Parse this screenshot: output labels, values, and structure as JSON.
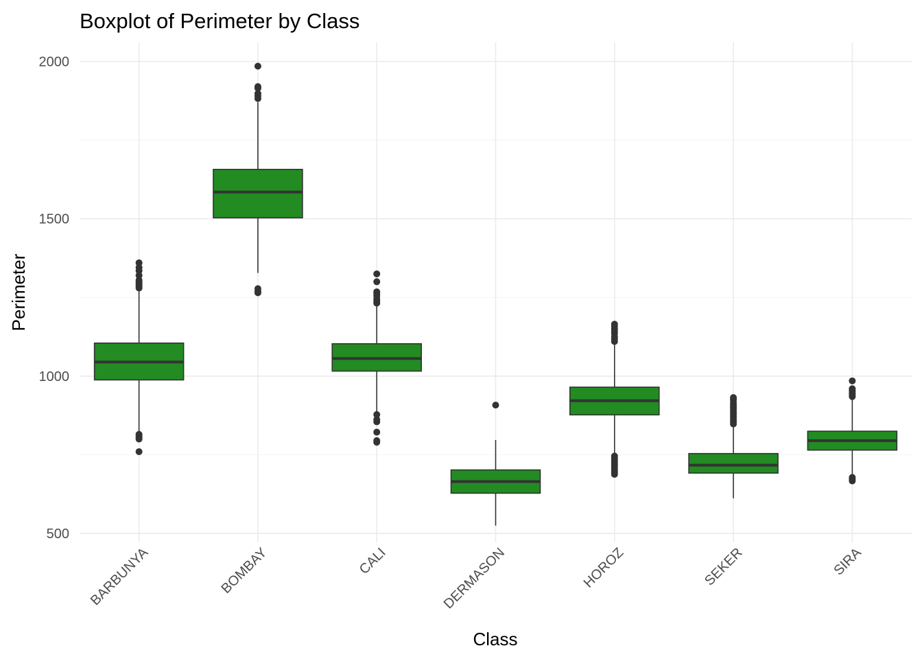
{
  "chart_data": {
    "type": "boxplot",
    "title": "Boxplot of Perimeter by Class",
    "xlabel": "Class",
    "ylabel": "Perimeter",
    "ylim": [
      472,
      2060
    ],
    "y_ticks": [
      500,
      1000,
      1500,
      2000
    ],
    "y_tick_labels": [
      "500",
      "1000",
      "1500",
      "2000"
    ],
    "grid": true,
    "fill_color": "#228b22",
    "line_color": "#333333",
    "categories": [
      "BARBUNYA",
      "BOMBAY",
      "CALI",
      "DERMASON",
      "HOROZ",
      "SEKER",
      "SIRA"
    ],
    "boxes": [
      {
        "category": "BARBUNYA",
        "whisker_low": 822,
        "q1": 988,
        "median": 1045,
        "q3": 1105,
        "whisker_high": 1270,
        "outliers": [
          760,
          800,
          805,
          810,
          815,
          1280,
          1285,
          1290,
          1295,
          1300,
          1305,
          1320,
          1335,
          1345,
          1360
        ]
      },
      {
        "category": "BOMBAY",
        "whisker_low": 1328,
        "q1": 1503,
        "median": 1585,
        "q3": 1657,
        "whisker_high": 1870,
        "outliers": [
          1265,
          1270,
          1278,
          1882,
          1890,
          1898,
          1915,
          1920,
          1985
        ]
      },
      {
        "category": "CALI",
        "whisker_low": 885,
        "q1": 1016,
        "median": 1056,
        "q3": 1103,
        "whisker_high": 1225,
        "outliers": [
          790,
          795,
          822,
          855,
          862,
          878,
          1232,
          1238,
          1245,
          1255,
          1262,
          1268,
          1300,
          1325
        ]
      },
      {
        "category": "DERMASON",
        "whisker_low": 525,
        "q1": 628,
        "median": 665,
        "q3": 702,
        "whisker_high": 797,
        "outliers": [
          908
        ]
      },
      {
        "category": "HOROZ",
        "whisker_low": 755,
        "q1": 877,
        "median": 922,
        "q3": 965,
        "whisker_high": 1100,
        "outliers": [
          688,
          693,
          698,
          703,
          710,
          718,
          725,
          732,
          740,
          746,
          1110,
          1118,
          1125,
          1135,
          1142,
          1150,
          1158,
          1165
        ]
      },
      {
        "category": "SEKER",
        "whisker_low": 612,
        "q1": 692,
        "median": 717,
        "q3": 754,
        "whisker_high": 840,
        "outliers": [
          848,
          855,
          862,
          870,
          878,
          885,
          893,
          900,
          908,
          915,
          925,
          932
        ]
      },
      {
        "category": "SIRA",
        "whisker_low": 685,
        "q1": 765,
        "median": 795,
        "q3": 825,
        "whisker_high": 930,
        "outliers": [
          667,
          672,
          678,
          935,
          940,
          945,
          950,
          955,
          960,
          985
        ]
      }
    ]
  }
}
